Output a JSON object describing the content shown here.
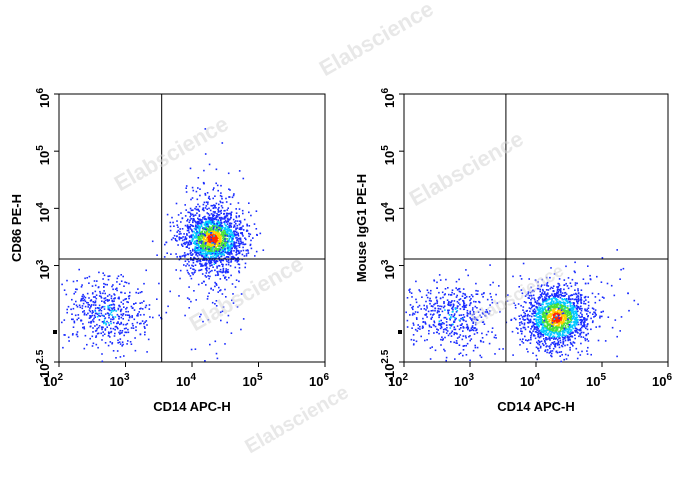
{
  "watermark": "Elabscience",
  "colors": {
    "density_low": "#1a2cff",
    "density_mid": "#00c8ff",
    "density_mid2": "#46e03a",
    "density_high": "#ffd000",
    "density_peak": "#ff2a00",
    "gate_line": "#000000"
  },
  "chart_data": [
    {
      "type": "scatter",
      "subtype": "flow-cytometry-density-plot",
      "xlabel": "CD14 APC-H",
      "ylabel": "CD86 PE-H",
      "x_scale": "log",
      "y_scale": "log",
      "xlim": [
        100,
        1000000
      ],
      "ylim": [
        -316,
        1000000
      ],
      "x_ticks": [
        {
          "value": 100,
          "base": "10",
          "exp": "2"
        },
        {
          "value": 1000,
          "base": "10",
          "exp": "3"
        },
        {
          "value": 10000,
          "base": "10",
          "exp": "4"
        },
        {
          "value": 100000,
          "base": "10",
          "exp": "5"
        },
        {
          "value": 1000000,
          "base": "10",
          "exp": "6"
        }
      ],
      "y_ticks": [
        {
          "value": -316,
          "base": "-10",
          "exp": "2.5"
        },
        {
          "value": 1000,
          "base": "10",
          "exp": "3"
        },
        {
          "value": 10000,
          "base": "10",
          "exp": "4"
        },
        {
          "value": 100000,
          "base": "10",
          "exp": "5"
        },
        {
          "value": 1000000,
          "base": "10",
          "exp": "6"
        }
      ],
      "gate": {
        "x": 3500,
        "y": 1300
      },
      "populations": [
        {
          "x_center": 20000,
          "y_center": 3000,
          "density": "high"
        },
        {
          "x_center": 500,
          "y_center": 350,
          "density": "low"
        }
      ]
    },
    {
      "type": "scatter",
      "subtype": "flow-cytometry-density-plot",
      "xlabel": "CD14 APC-H",
      "ylabel": "Mouse IgG1 PE-H",
      "x_scale": "log",
      "y_scale": "log",
      "xlim": [
        100,
        1000000
      ],
      "ylim": [
        -316,
        1000000
      ],
      "x_ticks": [
        {
          "value": 100,
          "base": "10",
          "exp": "2"
        },
        {
          "value": 1000,
          "base": "10",
          "exp": "3"
        },
        {
          "value": 10000,
          "base": "10",
          "exp": "4"
        },
        {
          "value": 100000,
          "base": "10",
          "exp": "5"
        },
        {
          "value": 1000000,
          "base": "10",
          "exp": "6"
        }
      ],
      "y_ticks": [
        {
          "value": -316,
          "base": "-10",
          "exp": "2.5"
        },
        {
          "value": 1000,
          "base": "10",
          "exp": "3"
        },
        {
          "value": 10000,
          "base": "10",
          "exp": "4"
        },
        {
          "value": 100000,
          "base": "10",
          "exp": "5"
        },
        {
          "value": 1000000,
          "base": "10",
          "exp": "6"
        }
      ],
      "gate": {
        "x": 3500,
        "y": 1300
      },
      "populations": [
        {
          "x_center": 20000,
          "y_center": 300,
          "density": "high"
        },
        {
          "x_center": 500,
          "y_center": 300,
          "density": "low"
        }
      ]
    }
  ]
}
